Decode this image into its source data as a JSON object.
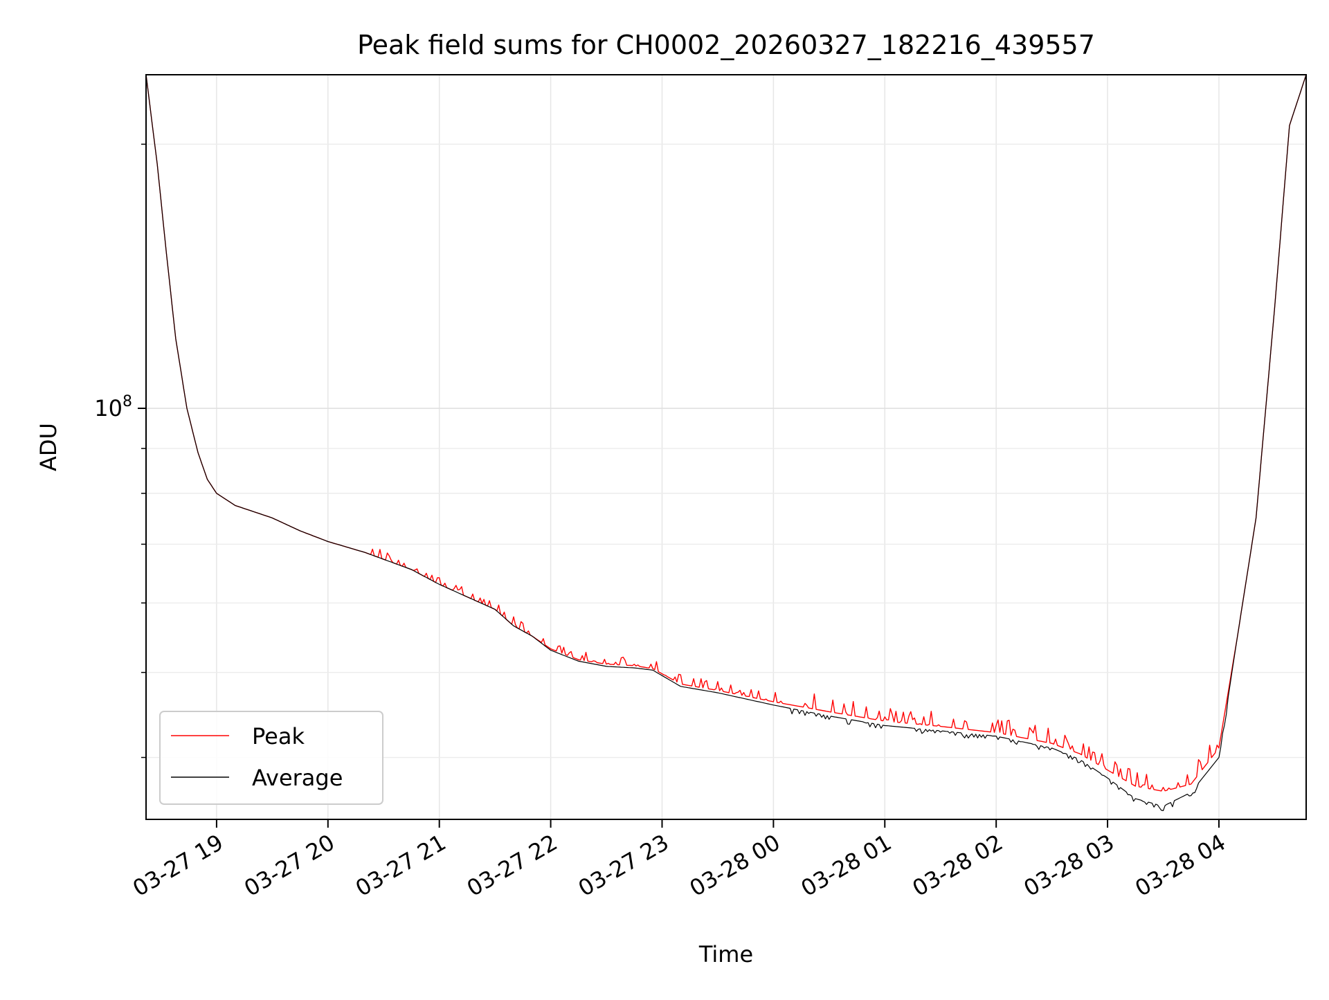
{
  "chart_data": {
    "type": "line",
    "title": "Peak field sums for CH0002_20260327_182216_439557",
    "xlabel": "Time",
    "ylabel": "ADU",
    "y_scale": "log",
    "y_tick_label": {
      "base": "10",
      "exp": "8",
      "value": 100000000
    },
    "ylim": [
      34000000,
      240000000
    ],
    "xlim": [
      "2026-03-27 18:22",
      "2026-03-28 04:47"
    ],
    "x_ticks": [
      "03-27 19",
      "03-27 20",
      "03-27 21",
      "03-27 22",
      "03-27 23",
      "03-28 00",
      "03-28 01",
      "03-28 02",
      "03-28 03",
      "03-28 04"
    ],
    "grid": true,
    "legend_position": "lower-left",
    "series": [
      {
        "name": "Peak",
        "color": "#ff0000",
        "noisy": true,
        "points": [
          [
            "2026-03-27 18:22",
            240000000
          ],
          [
            "2026-03-27 18:28",
            190000000
          ],
          [
            "2026-03-27 18:33",
            150000000
          ],
          [
            "2026-03-27 18:38",
            120000000
          ],
          [
            "2026-03-27 18:44",
            100000000
          ],
          [
            "2026-03-27 18:50",
            89000000
          ],
          [
            "2026-03-27 18:55",
            83000000
          ],
          [
            "2026-03-27 19:00",
            80000000
          ],
          [
            "2026-03-27 19:10",
            77500000
          ],
          [
            "2026-03-27 19:30",
            75000000
          ],
          [
            "2026-03-27 19:45",
            72500000
          ],
          [
            "2026-03-27 20:00",
            70500000
          ],
          [
            "2026-03-27 20:20",
            68500000
          ],
          [
            "2026-03-27 20:45",
            65500000
          ],
          [
            "2026-03-27 21:00",
            63000000
          ],
          [
            "2026-03-27 21:30",
            59000000
          ],
          [
            "2026-03-27 21:40",
            56500000
          ],
          [
            "2026-03-27 21:50",
            55000000
          ],
          [
            "2026-03-27 22:00",
            53200000
          ],
          [
            "2026-03-27 22:15",
            51700000
          ],
          [
            "2026-03-27 22:30",
            51100000
          ],
          [
            "2026-03-27 22:45",
            50900000
          ],
          [
            "2026-03-27 22:55",
            50500000
          ],
          [
            "2026-03-27 23:10",
            48500000
          ],
          [
            "2026-03-27 23:30",
            47700000
          ],
          [
            "2026-03-28 00:00",
            46300000
          ],
          [
            "2026-03-28 00:30",
            45100000
          ],
          [
            "2026-03-28 01:00",
            44000000
          ],
          [
            "2026-03-28 01:30",
            43400000
          ],
          [
            "2026-03-28 02:00",
            42700000
          ],
          [
            "2026-03-28 02:30",
            41500000
          ],
          [
            "2026-03-28 02:45",
            40400000
          ],
          [
            "2026-03-28 03:00",
            38700000
          ],
          [
            "2026-03-28 03:15",
            37100000
          ],
          [
            "2026-03-28 03:30",
            36600000
          ],
          [
            "2026-03-28 03:45",
            37300000
          ],
          [
            "2026-03-28 04:00",
            41000000
          ],
          [
            "2026-03-28 04:10",
            55000000
          ],
          [
            "2026-03-28 04:20",
            75000000
          ],
          [
            "2026-03-28 04:30",
            130000000
          ],
          [
            "2026-03-28 04:38",
            210000000
          ],
          [
            "2026-03-28 04:47",
            240000000
          ]
        ]
      },
      {
        "name": "Average",
        "color": "#000000",
        "noisy": false,
        "points": [
          [
            "2026-03-27 18:22",
            240000000
          ],
          [
            "2026-03-27 18:28",
            190000000
          ],
          [
            "2026-03-27 18:33",
            150000000
          ],
          [
            "2026-03-27 18:38",
            120000000
          ],
          [
            "2026-03-27 18:44",
            100000000
          ],
          [
            "2026-03-27 18:50",
            89000000
          ],
          [
            "2026-03-27 18:55",
            83000000
          ],
          [
            "2026-03-27 19:00",
            80000000
          ],
          [
            "2026-03-27 19:10",
            77500000
          ],
          [
            "2026-03-27 19:30",
            75000000
          ],
          [
            "2026-03-27 19:45",
            72500000
          ],
          [
            "2026-03-27 20:00",
            70500000
          ],
          [
            "2026-03-27 20:20",
            68500000
          ],
          [
            "2026-03-27 20:45",
            65500000
          ],
          [
            "2026-03-27 21:00",
            63000000
          ],
          [
            "2026-03-27 21:30",
            59000000
          ],
          [
            "2026-03-27 21:40",
            56500000
          ],
          [
            "2026-03-27 21:50",
            55000000
          ],
          [
            "2026-03-27 22:00",
            53000000
          ],
          [
            "2026-03-27 22:15",
            51500000
          ],
          [
            "2026-03-27 22:30",
            50800000
          ],
          [
            "2026-03-27 22:45",
            50600000
          ],
          [
            "2026-03-27 22:55",
            50300000
          ],
          [
            "2026-03-27 23:10",
            48200000
          ],
          [
            "2026-03-27 23:30",
            47400000
          ],
          [
            "2026-03-28 00:00",
            45900000
          ],
          [
            "2026-03-28 00:30",
            44600000
          ],
          [
            "2026-03-28 01:00",
            43500000
          ],
          [
            "2026-03-28 01:30",
            42900000
          ],
          [
            "2026-03-28 02:00",
            42300000
          ],
          [
            "2026-03-28 02:30",
            41000000
          ],
          [
            "2026-03-28 02:45",
            39800000
          ],
          [
            "2026-03-28 03:00",
            37900000
          ],
          [
            "2026-03-28 03:15",
            35900000
          ],
          [
            "2026-03-28 03:30",
            35200000
          ],
          [
            "2026-03-28 03:45",
            36500000
          ],
          [
            "2026-03-28 04:00",
            40000000
          ],
          [
            "2026-03-28 04:10",
            55000000
          ],
          [
            "2026-03-28 04:20",
            75000000
          ],
          [
            "2026-03-28 04:30",
            130000000
          ],
          [
            "2026-03-28 04:38",
            210000000
          ],
          [
            "2026-03-28 04:47",
            240000000
          ]
        ]
      }
    ]
  }
}
